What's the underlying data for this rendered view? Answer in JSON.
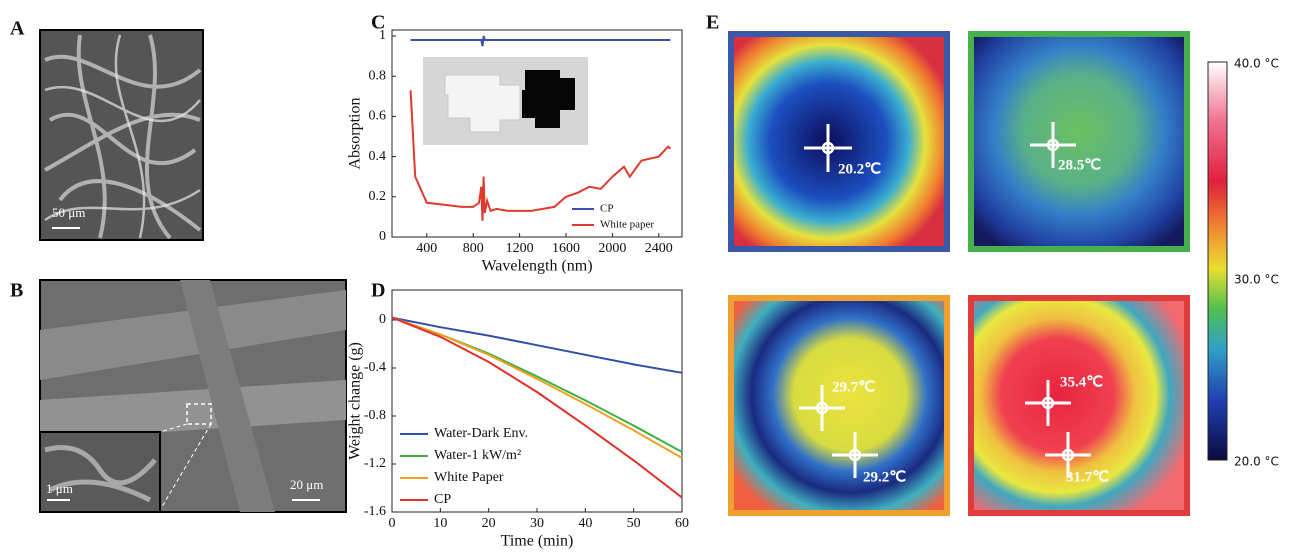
{
  "panels": {
    "A": {
      "label": "A",
      "scale_bar": "50 μm"
    },
    "B": {
      "label": "B",
      "scale_bar": "20 μm",
      "inset_scale_bar": "1 μm"
    },
    "C": {
      "label": "C"
    },
    "D": {
      "label": "D"
    },
    "E": {
      "label": "E",
      "readings": [
        "20.2℃",
        "28.5℃",
        "29.7℃",
        "29.2℃",
        "35.4℃",
        "31.7℃"
      ],
      "colorbar": [
        "40.0 °C",
        "30.0 °C",
        "20.0 °C"
      ]
    }
  },
  "chart_data": [
    {
      "type": "line",
      "x_label": "Wavelength (nm)",
      "y_label": "Absorption",
      "x": [
        260,
        300,
        400,
        550,
        700,
        800,
        850,
        870,
        880,
        890,
        900,
        920,
        950,
        1000,
        1100,
        1300,
        1500,
        1600,
        1700,
        1800,
        1900,
        2000,
        2100,
        2150,
        2250,
        2400,
        2480,
        2500
      ],
      "series": [
        {
          "name": "CP",
          "color": "#3b4fb0",
          "values": [
            0.98,
            0.98,
            0.98,
            0.98,
            0.98,
            0.98,
            0.98,
            0.98,
            0.95,
            1.0,
            0.98,
            0.98,
            0.98,
            0.98,
            0.98,
            0.98,
            0.98,
            0.98,
            0.98,
            0.98,
            0.98,
            0.98,
            0.98,
            0.98,
            0.98,
            0.98,
            0.98,
            0.98
          ]
        },
        {
          "name": "White paper",
          "color": "#e03a2e",
          "values": [
            0.73,
            0.3,
            0.17,
            0.16,
            0.15,
            0.15,
            0.17,
            0.25,
            0.08,
            0.3,
            0.12,
            0.18,
            0.13,
            0.14,
            0.13,
            0.13,
            0.15,
            0.2,
            0.22,
            0.25,
            0.24,
            0.3,
            0.35,
            0.3,
            0.38,
            0.4,
            0.45,
            0.44
          ]
        }
      ],
      "xlim": [
        100,
        2600
      ],
      "xticks": [
        400,
        800,
        1200,
        1600,
        2000,
        2400
      ],
      "ylim": [
        0,
        1.03
      ],
      "yticks": [
        0,
        0.2,
        0.4,
        0.6,
        0.8,
        1
      ],
      "legend": "lower-right"
    },
    {
      "type": "line",
      "x_label": "Time (min)",
      "y_label": "Weight change (g)",
      "x": [
        0,
        10,
        20,
        30,
        40,
        50,
        60
      ],
      "series": [
        {
          "name": "Water-Dark Env.",
          "color": "#2f4fa8",
          "values": [
            0.02,
            -0.06,
            -0.13,
            -0.21,
            -0.29,
            -0.37,
            -0.44
          ]
        },
        {
          "name": "Water-1 kW/m²",
          "color": "#3cb043",
          "values": [
            0.02,
            -0.12,
            -0.28,
            -0.47,
            -0.67,
            -0.88,
            -1.1
          ]
        },
        {
          "name": "White Paper",
          "color": "#f0a020",
          "values": [
            0.02,
            -0.12,
            -0.29,
            -0.49,
            -0.7,
            -0.92,
            -1.15
          ]
        },
        {
          "name": "CP",
          "color": "#e0302a",
          "values": [
            0.02,
            -0.14,
            -0.35,
            -0.6,
            -0.88,
            -1.17,
            -1.48
          ]
        }
      ],
      "xlim": [
        0,
        60
      ],
      "xticks": [
        0,
        10,
        20,
        30,
        40,
        50,
        60
      ],
      "ylim": [
        -1.6,
        0.25
      ],
      "yticks": [
        0,
        -0.4,
        -0.8,
        -1.2,
        -1.6
      ],
      "legend": "lower-left"
    }
  ]
}
